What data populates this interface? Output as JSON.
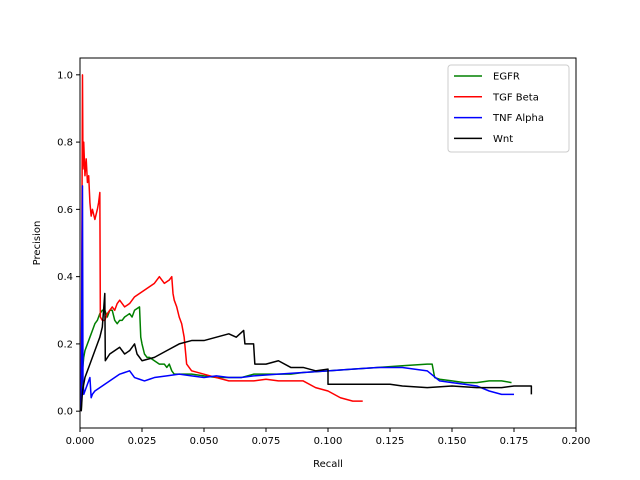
{
  "chart_data": {
    "type": "line",
    "title": "",
    "xlabel": "Recall",
    "ylabel": "Precision",
    "xlim": [
      0.0,
      0.2
    ],
    "ylim": [
      -0.05,
      1.05
    ],
    "xticks": [
      "0.000",
      "0.025",
      "0.050",
      "0.075",
      "0.100",
      "0.125",
      "0.150",
      "0.175",
      "0.200"
    ],
    "yticks": [
      "0.0",
      "0.2",
      "0.4",
      "0.6",
      "0.8",
      "1.0"
    ],
    "grid": false,
    "legend_position": "top-right",
    "series": [
      {
        "name": "EGFR",
        "color": "#008000",
        "points": [
          [
            0.0005,
            0.0
          ],
          [
            0.0008,
            0.08
          ],
          [
            0.001,
            0.12
          ],
          [
            0.0015,
            0.16
          ],
          [
            0.002,
            0.18
          ],
          [
            0.003,
            0.2
          ],
          [
            0.004,
            0.22
          ],
          [
            0.005,
            0.24
          ],
          [
            0.006,
            0.26
          ],
          [
            0.007,
            0.27
          ],
          [
            0.008,
            0.29
          ],
          [
            0.009,
            0.3
          ],
          [
            0.01,
            0.3
          ],
          [
            0.011,
            0.28
          ],
          [
            0.012,
            0.3
          ],
          [
            0.013,
            0.3
          ],
          [
            0.014,
            0.27
          ],
          [
            0.015,
            0.26
          ],
          [
            0.016,
            0.27
          ],
          [
            0.017,
            0.27
          ],
          [
            0.018,
            0.28
          ],
          [
            0.02,
            0.29
          ],
          [
            0.021,
            0.28
          ],
          [
            0.022,
            0.3
          ],
          [
            0.024,
            0.31
          ],
          [
            0.0245,
            0.22
          ],
          [
            0.025,
            0.2
          ],
          [
            0.026,
            0.17
          ],
          [
            0.027,
            0.16
          ],
          [
            0.028,
            0.16
          ],
          [
            0.03,
            0.15
          ],
          [
            0.032,
            0.14
          ],
          [
            0.034,
            0.14
          ],
          [
            0.035,
            0.13
          ],
          [
            0.036,
            0.14
          ],
          [
            0.037,
            0.12
          ],
          [
            0.038,
            0.11
          ],
          [
            0.04,
            0.11
          ],
          [
            0.045,
            0.11
          ],
          [
            0.05,
            0.105
          ],
          [
            0.055,
            0.1
          ],
          [
            0.06,
            0.1
          ],
          [
            0.065,
            0.1
          ],
          [
            0.07,
            0.11
          ],
          [
            0.075,
            0.11
          ],
          [
            0.08,
            0.11
          ],
          [
            0.085,
            0.11
          ],
          [
            0.09,
            0.115
          ],
          [
            0.1,
            0.12
          ],
          [
            0.11,
            0.125
          ],
          [
            0.12,
            0.13
          ],
          [
            0.13,
            0.135
          ],
          [
            0.14,
            0.14
          ],
          [
            0.142,
            0.14
          ],
          [
            0.143,
            0.1
          ],
          [
            0.145,
            0.095
          ],
          [
            0.15,
            0.09
          ],
          [
            0.155,
            0.085
          ],
          [
            0.16,
            0.085
          ],
          [
            0.165,
            0.09
          ],
          [
            0.17,
            0.09
          ],
          [
            0.174,
            0.085
          ]
        ]
      },
      {
        "name": "TGF Beta",
        "color": "#ff0000",
        "points": [
          [
            0.0005,
            0.0
          ],
          [
            0.0008,
            0.6
          ],
          [
            0.001,
            1.0
          ],
          [
            0.0012,
            0.72
          ],
          [
            0.0015,
            0.8
          ],
          [
            0.002,
            0.7
          ],
          [
            0.0025,
            0.75
          ],
          [
            0.003,
            0.68
          ],
          [
            0.0035,
            0.7
          ],
          [
            0.004,
            0.62
          ],
          [
            0.0045,
            0.58
          ],
          [
            0.005,
            0.6
          ],
          [
            0.006,
            0.57
          ],
          [
            0.007,
            0.6
          ],
          [
            0.0075,
            0.62
          ],
          [
            0.008,
            0.65
          ],
          [
            0.0082,
            0.28
          ],
          [
            0.009,
            0.27
          ],
          [
            0.01,
            0.27
          ],
          [
            0.011,
            0.29
          ],
          [
            0.012,
            0.3
          ],
          [
            0.013,
            0.31
          ],
          [
            0.014,
            0.3
          ],
          [
            0.015,
            0.32
          ],
          [
            0.016,
            0.33
          ],
          [
            0.017,
            0.32
          ],
          [
            0.018,
            0.31
          ],
          [
            0.02,
            0.32
          ],
          [
            0.022,
            0.34
          ],
          [
            0.024,
            0.35
          ],
          [
            0.026,
            0.36
          ],
          [
            0.028,
            0.37
          ],
          [
            0.03,
            0.38
          ],
          [
            0.032,
            0.4
          ],
          [
            0.034,
            0.38
          ],
          [
            0.036,
            0.39
          ],
          [
            0.037,
            0.4
          ],
          [
            0.0375,
            0.35
          ],
          [
            0.038,
            0.33
          ],
          [
            0.039,
            0.31
          ],
          [
            0.04,
            0.28
          ],
          [
            0.041,
            0.26
          ],
          [
            0.042,
            0.22
          ],
          [
            0.043,
            0.14
          ],
          [
            0.045,
            0.12
          ],
          [
            0.05,
            0.11
          ],
          [
            0.055,
            0.1
          ],
          [
            0.06,
            0.09
          ],
          [
            0.065,
            0.09
          ],
          [
            0.07,
            0.09
          ],
          [
            0.075,
            0.095
          ],
          [
            0.08,
            0.09
          ],
          [
            0.085,
            0.09
          ],
          [
            0.09,
            0.09
          ],
          [
            0.095,
            0.07
          ],
          [
            0.1,
            0.06
          ],
          [
            0.105,
            0.04
          ],
          [
            0.11,
            0.03
          ],
          [
            0.114,
            0.03
          ]
        ]
      },
      {
        "name": "TNF Alpha",
        "color": "#0000ff",
        "points": [
          [
            0.0005,
            0.0
          ],
          [
            0.0008,
            0.44
          ],
          [
            0.001,
            0.67
          ],
          [
            0.0012,
            0.1
          ],
          [
            0.0015,
            0.05
          ],
          [
            0.002,
            0.06
          ],
          [
            0.003,
            0.08
          ],
          [
            0.004,
            0.1
          ],
          [
            0.0045,
            0.04
          ],
          [
            0.005,
            0.05
          ],
          [
            0.006,
            0.06
          ],
          [
            0.008,
            0.07
          ],
          [
            0.01,
            0.08
          ],
          [
            0.012,
            0.09
          ],
          [
            0.014,
            0.1
          ],
          [
            0.016,
            0.11
          ],
          [
            0.018,
            0.115
          ],
          [
            0.02,
            0.12
          ],
          [
            0.021,
            0.11
          ],
          [
            0.022,
            0.1
          ],
          [
            0.024,
            0.095
          ],
          [
            0.026,
            0.09
          ],
          [
            0.028,
            0.095
          ],
          [
            0.03,
            0.1
          ],
          [
            0.035,
            0.105
          ],
          [
            0.04,
            0.11
          ],
          [
            0.045,
            0.105
          ],
          [
            0.05,
            0.1
          ],
          [
            0.055,
            0.105
          ],
          [
            0.06,
            0.1
          ],
          [
            0.065,
            0.1
          ],
          [
            0.07,
            0.105
          ],
          [
            0.08,
            0.11
          ],
          [
            0.09,
            0.115
          ],
          [
            0.1,
            0.12
          ],
          [
            0.11,
            0.125
          ],
          [
            0.12,
            0.13
          ],
          [
            0.13,
            0.13
          ],
          [
            0.14,
            0.12
          ],
          [
            0.145,
            0.09
          ],
          [
            0.15,
            0.085
          ],
          [
            0.155,
            0.08
          ],
          [
            0.16,
            0.075
          ],
          [
            0.165,
            0.06
          ],
          [
            0.17,
            0.05
          ],
          [
            0.175,
            0.05
          ]
        ]
      },
      {
        "name": "Wnt",
        "color": "#000000",
        "points": [
          [
            0.0005,
            0.0
          ],
          [
            0.001,
            0.06
          ],
          [
            0.002,
            0.1
          ],
          [
            0.003,
            0.12
          ],
          [
            0.004,
            0.14
          ],
          [
            0.005,
            0.16
          ],
          [
            0.006,
            0.18
          ],
          [
            0.007,
            0.2
          ],
          [
            0.008,
            0.22
          ],
          [
            0.009,
            0.25
          ],
          [
            0.0095,
            0.3
          ],
          [
            0.01,
            0.35
          ],
          [
            0.0102,
            0.15
          ],
          [
            0.012,
            0.17
          ],
          [
            0.014,
            0.18
          ],
          [
            0.016,
            0.19
          ],
          [
            0.018,
            0.17
          ],
          [
            0.02,
            0.18
          ],
          [
            0.022,
            0.2
          ],
          [
            0.023,
            0.17
          ],
          [
            0.025,
            0.15
          ],
          [
            0.03,
            0.16
          ],
          [
            0.035,
            0.18
          ],
          [
            0.04,
            0.2
          ],
          [
            0.045,
            0.21
          ],
          [
            0.05,
            0.21
          ],
          [
            0.055,
            0.22
          ],
          [
            0.06,
            0.23
          ],
          [
            0.063,
            0.22
          ],
          [
            0.066,
            0.24
          ],
          [
            0.0665,
            0.2
          ],
          [
            0.07,
            0.2
          ],
          [
            0.0705,
            0.14
          ],
          [
            0.075,
            0.14
          ],
          [
            0.08,
            0.15
          ],
          [
            0.085,
            0.13
          ],
          [
            0.09,
            0.13
          ],
          [
            0.095,
            0.12
          ],
          [
            0.1,
            0.125
          ],
          [
            0.1,
            0.08
          ],
          [
            0.11,
            0.08
          ],
          [
            0.12,
            0.08
          ],
          [
            0.125,
            0.08
          ],
          [
            0.13,
            0.075
          ],
          [
            0.14,
            0.07
          ],
          [
            0.15,
            0.075
          ],
          [
            0.16,
            0.07
          ],
          [
            0.17,
            0.07
          ],
          [
            0.175,
            0.075
          ],
          [
            0.18,
            0.075
          ],
          [
            0.182,
            0.075
          ],
          [
            0.182,
            0.05
          ]
        ]
      }
    ]
  }
}
